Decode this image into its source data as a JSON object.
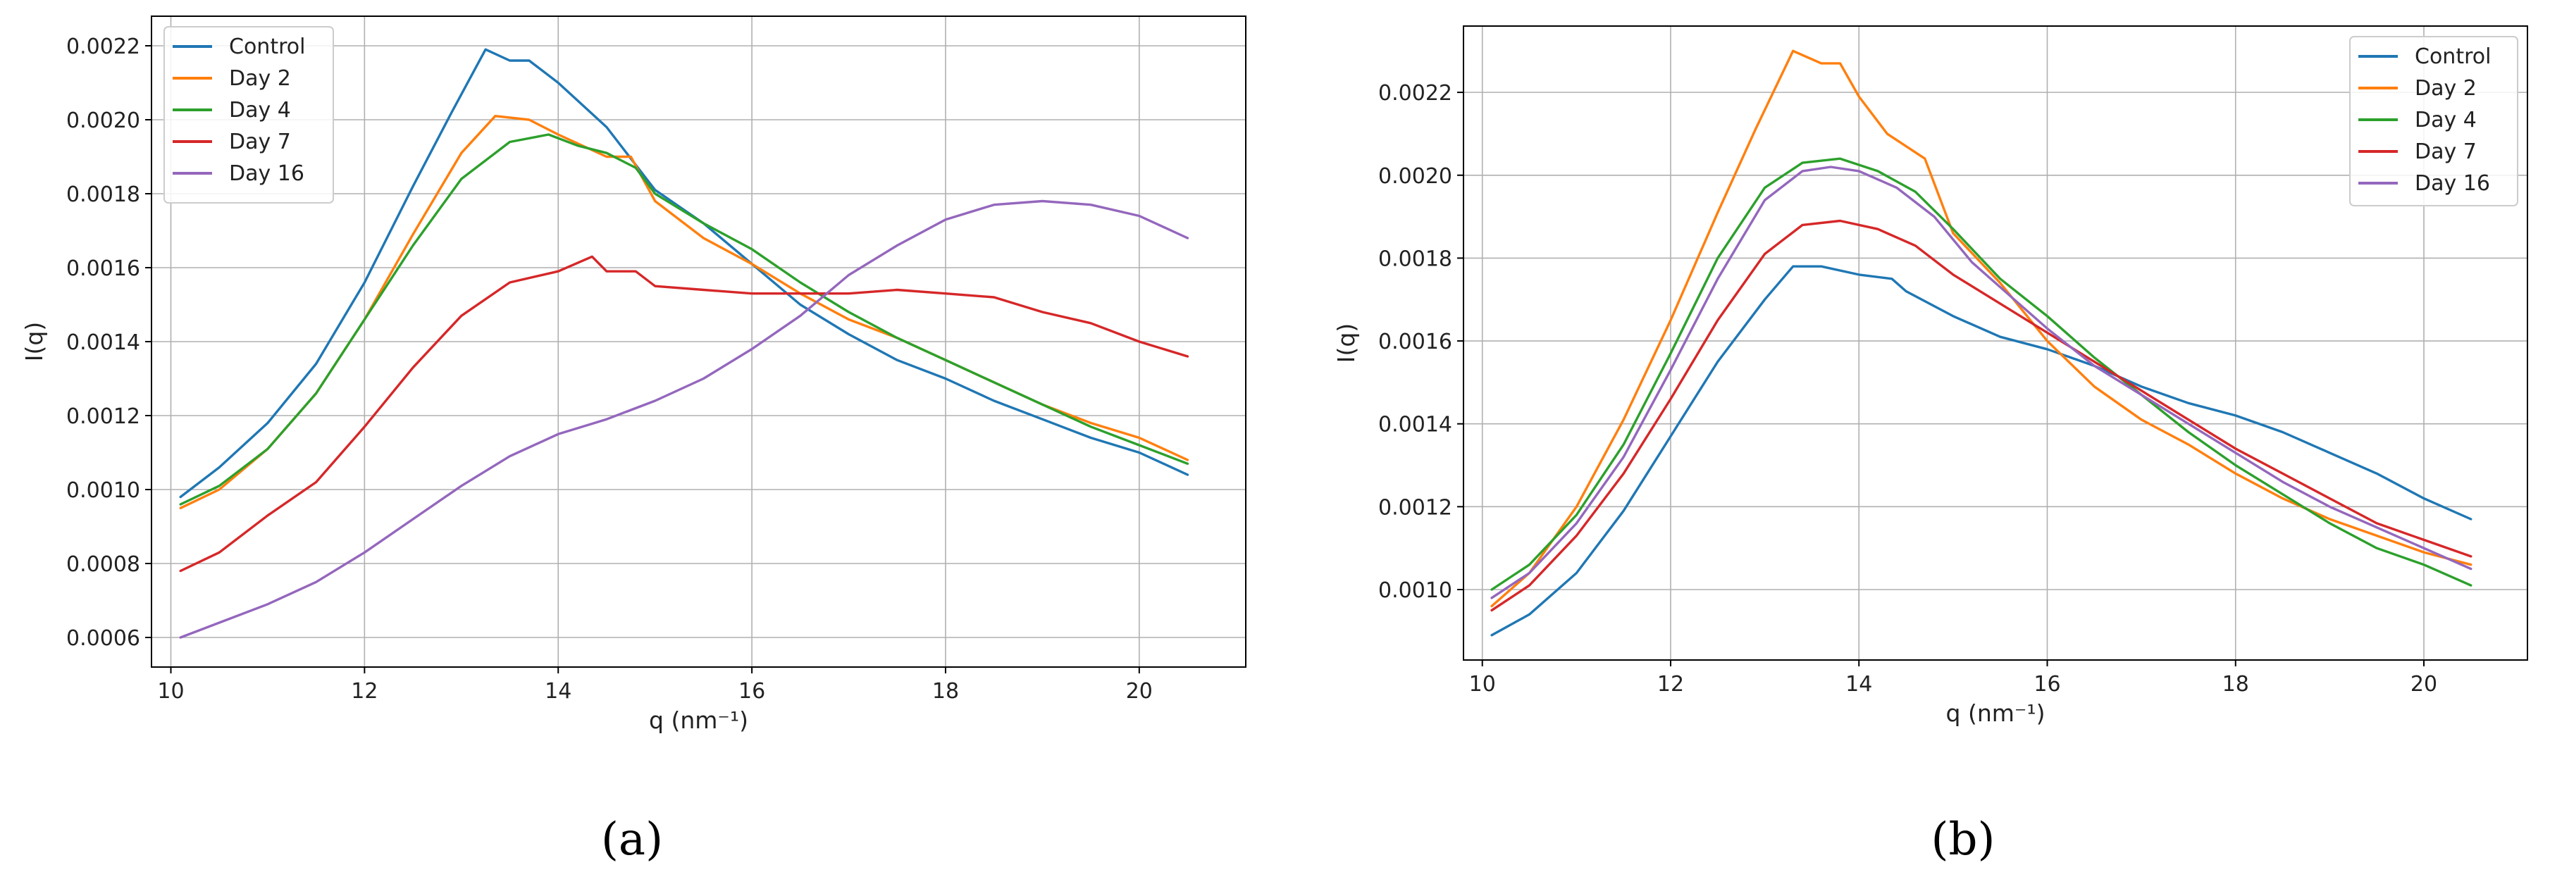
{
  "chart_data": [
    {
      "type": "line",
      "panel_label": "(a)",
      "xlabel": "q (nm⁻¹)",
      "ylabel": "I(q)",
      "xlim": [
        9.8,
        21.1
      ],
      "ylim": [
        0.00052,
        0.00228
      ],
      "xticks": [
        10,
        12,
        14,
        16,
        18,
        20
      ],
      "xtick_labels": [
        "10",
        "12",
        "14",
        "16",
        "18",
        "20"
      ],
      "yticks": [
        0.0006,
        0.0008,
        0.001,
        0.0012,
        0.0014,
        0.0016,
        0.0018,
        0.002,
        0.0022
      ],
      "ytick_labels": [
        "0.0006",
        "0.0008",
        "0.0010",
        "0.0012",
        "0.0014",
        "0.0016",
        "0.0018",
        "0.0020",
        "0.0022"
      ],
      "grid": true,
      "legend_position": "top-left",
      "series": [
        {
          "name": "Control",
          "color": "#1f77b4",
          "x": [
            10.1,
            10.5,
            11.0,
            11.5,
            12.0,
            12.5,
            12.9,
            13.25,
            13.5,
            13.7,
            14.0,
            14.5,
            15.0,
            15.5,
            16.0,
            16.5,
            17.0,
            17.5,
            18.0,
            18.5,
            19.0,
            19.5,
            20.0,
            20.5
          ],
          "y": [
            0.00098,
            0.00106,
            0.00118,
            0.00134,
            0.00156,
            0.00182,
            0.00202,
            0.00219,
            0.00216,
            0.00216,
            0.0021,
            0.00198,
            0.00181,
            0.00172,
            0.00161,
            0.0015,
            0.00142,
            0.00135,
            0.0013,
            0.00124,
            0.00119,
            0.00114,
            0.0011,
            0.00104
          ]
        },
        {
          "name": "Day 2",
          "color": "#ff7f0e",
          "x": [
            10.1,
            10.5,
            11.0,
            11.5,
            12.0,
            12.5,
            13.0,
            13.35,
            13.7,
            14.0,
            14.5,
            14.75,
            15.0,
            15.5,
            16.0,
            16.5,
            17.0,
            17.5,
            18.0,
            18.5,
            19.0,
            19.5,
            20.0,
            20.5
          ],
          "y": [
            0.00095,
            0.001,
            0.00111,
            0.00126,
            0.00146,
            0.00169,
            0.00191,
            0.00201,
            0.002,
            0.00196,
            0.0019,
            0.0019,
            0.00178,
            0.00168,
            0.00161,
            0.00153,
            0.00146,
            0.00141,
            0.00135,
            0.00129,
            0.00123,
            0.00118,
            0.00114,
            0.00108
          ]
        },
        {
          "name": "Day 4",
          "color": "#2ca02c",
          "x": [
            10.1,
            10.5,
            11.0,
            11.5,
            12.0,
            12.5,
            13.0,
            13.5,
            13.9,
            14.2,
            14.5,
            14.8,
            15.0,
            15.5,
            16.0,
            16.5,
            17.0,
            17.5,
            18.0,
            18.5,
            19.0,
            19.5,
            20.0,
            20.5
          ],
          "y": [
            0.00096,
            0.00101,
            0.00111,
            0.00126,
            0.00146,
            0.00166,
            0.00184,
            0.00194,
            0.00196,
            0.00193,
            0.00191,
            0.00187,
            0.0018,
            0.00172,
            0.00165,
            0.00156,
            0.00148,
            0.00141,
            0.00135,
            0.00129,
            0.00123,
            0.00117,
            0.00112,
            0.00107
          ]
        },
        {
          "name": "Day 7",
          "color": "#d62728",
          "x": [
            10.1,
            10.5,
            11.0,
            11.5,
            12.0,
            12.5,
            13.0,
            13.5,
            14.0,
            14.35,
            14.5,
            14.8,
            15.0,
            15.5,
            16.0,
            16.5,
            17.0,
            17.5,
            18.0,
            18.5,
            19.0,
            19.5,
            20.0,
            20.5
          ],
          "y": [
            0.00078,
            0.00083,
            0.00093,
            0.00102,
            0.00117,
            0.00133,
            0.00147,
            0.00156,
            0.00159,
            0.00163,
            0.00159,
            0.00159,
            0.00155,
            0.00154,
            0.00153,
            0.00153,
            0.00153,
            0.00154,
            0.00153,
            0.00152,
            0.00148,
            0.00145,
            0.0014,
            0.00136
          ]
        },
        {
          "name": "Day 16",
          "color": "#9467bd",
          "x": [
            10.1,
            10.5,
            11.0,
            11.5,
            12.0,
            12.5,
            13.0,
            13.5,
            14.0,
            14.5,
            15.0,
            15.5,
            16.0,
            16.5,
            17.0,
            17.5,
            18.0,
            18.5,
            19.0,
            19.5,
            20.0,
            20.5
          ],
          "y": [
            0.0006,
            0.00064,
            0.00069,
            0.00075,
            0.00083,
            0.00092,
            0.00101,
            0.00109,
            0.00115,
            0.00119,
            0.00124,
            0.0013,
            0.00138,
            0.00147,
            0.00158,
            0.00166,
            0.00173,
            0.00177,
            0.00178,
            0.00177,
            0.00174,
            0.00168
          ]
        }
      ]
    },
    {
      "type": "line",
      "panel_label": "(b)",
      "xlabel": "q (nm⁻¹)",
      "ylabel": "I(q)",
      "xlim": [
        9.8,
        21.1
      ],
      "ylim": [
        0.00083,
        0.00236
      ],
      "xticks": [
        10,
        12,
        14,
        16,
        18,
        20
      ],
      "xtick_labels": [
        "10",
        "12",
        "14",
        "16",
        "18",
        "20"
      ],
      "yticks": [
        0.001,
        0.0012,
        0.0014,
        0.0016,
        0.0018,
        0.002,
        0.0022
      ],
      "ytick_labels": [
        "0.0010",
        "0.0012",
        "0.0014",
        "0.0016",
        "0.0018",
        "0.0020",
        "0.0022"
      ],
      "grid": true,
      "legend_position": "top-right",
      "series": [
        {
          "name": "Control",
          "color": "#1f77b4",
          "x": [
            10.1,
            10.5,
            11.0,
            11.5,
            12.0,
            12.5,
            13.0,
            13.3,
            13.6,
            14.0,
            14.35,
            14.5,
            15.0,
            15.5,
            16.0,
            16.5,
            17.0,
            17.5,
            18.0,
            18.5,
            19.0,
            19.5,
            20.0,
            20.5
          ],
          "y": [
            0.00089,
            0.00094,
            0.00104,
            0.00119,
            0.00137,
            0.00155,
            0.0017,
            0.00178,
            0.00178,
            0.00176,
            0.00175,
            0.00172,
            0.00166,
            0.00161,
            0.00158,
            0.00154,
            0.00149,
            0.00145,
            0.00142,
            0.00138,
            0.00133,
            0.00128,
            0.00122,
            0.00117
          ]
        },
        {
          "name": "Day 2",
          "color": "#ff7f0e",
          "x": [
            10.1,
            10.5,
            11.0,
            11.5,
            12.0,
            12.5,
            12.9,
            13.3,
            13.6,
            13.8,
            14.0,
            14.3,
            14.7,
            15.0,
            15.5,
            16.0,
            16.5,
            17.0,
            17.5,
            18.0,
            18.5,
            19.0,
            19.5,
            20.0,
            20.5
          ],
          "y": [
            0.00096,
            0.00104,
            0.0012,
            0.00141,
            0.00165,
            0.00191,
            0.00211,
            0.0023,
            0.00227,
            0.00227,
            0.00219,
            0.0021,
            0.00204,
            0.00186,
            0.00174,
            0.0016,
            0.00149,
            0.00141,
            0.00135,
            0.00128,
            0.00122,
            0.00117,
            0.00113,
            0.00109,
            0.00106
          ]
        },
        {
          "name": "Day 4",
          "color": "#2ca02c",
          "x": [
            10.1,
            10.5,
            11.0,
            11.5,
            12.0,
            12.5,
            13.0,
            13.4,
            13.8,
            14.2,
            14.6,
            15.0,
            15.5,
            16.0,
            16.5,
            17.0,
            17.5,
            18.0,
            18.5,
            19.0,
            19.5,
            20.0,
            20.5
          ],
          "y": [
            0.001,
            0.00106,
            0.00118,
            0.00135,
            0.00157,
            0.0018,
            0.00197,
            0.00203,
            0.00204,
            0.00201,
            0.00196,
            0.00187,
            0.00175,
            0.00166,
            0.00156,
            0.00147,
            0.00138,
            0.0013,
            0.00123,
            0.00116,
            0.0011,
            0.00106,
            0.00101
          ]
        },
        {
          "name": "Day 7",
          "color": "#d62728",
          "x": [
            10.1,
            10.5,
            11.0,
            11.5,
            12.0,
            12.5,
            13.0,
            13.4,
            13.8,
            14.2,
            14.6,
            15.0,
            15.5,
            16.0,
            16.5,
            17.0,
            17.5,
            18.0,
            18.5,
            19.0,
            19.5,
            20.0,
            20.5
          ],
          "y": [
            0.00095,
            0.00101,
            0.00113,
            0.00128,
            0.00146,
            0.00165,
            0.00181,
            0.00188,
            0.00189,
            0.00187,
            0.00183,
            0.00176,
            0.00169,
            0.00162,
            0.00155,
            0.00148,
            0.00141,
            0.00134,
            0.00128,
            0.00122,
            0.00116,
            0.00112,
            0.00108
          ]
        },
        {
          "name": "Day 16",
          "color": "#9467bd",
          "x": [
            10.1,
            10.5,
            11.0,
            11.5,
            12.0,
            12.5,
            13.0,
            13.4,
            13.7,
            14.0,
            14.4,
            14.8,
            15.2,
            15.6,
            16.0,
            16.5,
            17.0,
            17.5,
            18.0,
            18.5,
            19.0,
            19.5,
            20.0,
            20.5
          ],
          "y": [
            0.00098,
            0.00104,
            0.00116,
            0.00132,
            0.00153,
            0.00175,
            0.00194,
            0.00201,
            0.00202,
            0.00201,
            0.00197,
            0.0019,
            0.00179,
            0.00171,
            0.00163,
            0.00154,
            0.00147,
            0.0014,
            0.00133,
            0.00126,
            0.0012,
            0.00115,
            0.0011,
            0.00105
          ]
        }
      ]
    }
  ]
}
